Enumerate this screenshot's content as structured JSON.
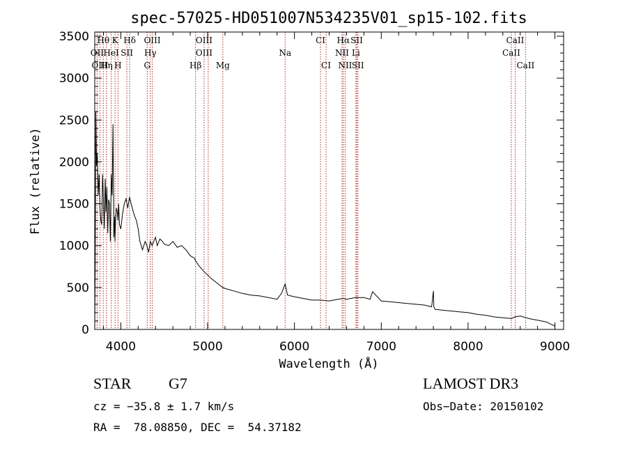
{
  "chart_data": {
    "type": "line",
    "title": "spec-57025-HD051007N534235V01_sp15-102.fits",
    "xlabel": "Wavelength (Å)",
    "ylabel": "Flux (relative)",
    "xlim": [
      3700,
      9100
    ],
    "ylim": [
      0,
      3550
    ],
    "xticks": [
      4000,
      5000,
      6000,
      7000,
      8000,
      9000
    ],
    "xtick_labels": [
      "4000",
      "5000",
      "6000",
      "7000",
      "8000",
      "9000"
    ],
    "yticks": [
      0,
      500,
      1000,
      1500,
      2000,
      2500,
      3000,
      3500
    ],
    "ytick_labels": [
      "0",
      "500",
      "1000",
      "1500",
      "2000",
      "2500",
      "3000",
      "3500"
    ],
    "grid": false,
    "series": [
      {
        "name": "flux",
        "color": "#000000",
        "x": [
          3700,
          3705,
          3712,
          3720,
          3730,
          3740,
          3750,
          3760,
          3770,
          3780,
          3790,
          3800,
          3810,
          3820,
          3830,
          3840,
          3850,
          3860,
          3870,
          3880,
          3890,
          3900,
          3910,
          3920,
          3930,
          3933,
          3940,
          3950,
          3960,
          3968,
          3975,
          3985,
          4000,
          4020,
          4040,
          4060,
          4080,
          4100,
          4120,
          4140,
          4160,
          4180,
          4200,
          4220,
          4250,
          4280,
          4300,
          4320,
          4340,
          4360,
          4380,
          4400,
          4420,
          4450,
          4480,
          4500,
          4550,
          4600,
          4650,
          4700,
          4750,
          4800,
          4850,
          4861,
          4900,
          4950,
          5000,
          5050,
          5100,
          5150,
          5175,
          5200,
          5300,
          5400,
          5500,
          5600,
          5700,
          5800,
          5850,
          5893,
          5920,
          6000,
          6100,
          6200,
          6300,
          6400,
          6500,
          6563,
          6600,
          6700,
          6800,
          6870,
          6900,
          7000,
          7100,
          7200,
          7300,
          7400,
          7500,
          7580,
          7600,
          7605,
          7620,
          7700,
          7800,
          7900,
          8000,
          8100,
          8200,
          8300,
          8400,
          8500,
          8540,
          8600,
          8700,
          8800,
          8900,
          9000
        ],
        "values": [
          0,
          700,
          2600,
          1950,
          2100,
          1600,
          1850,
          1450,
          1300,
          1250,
          1850,
          1550,
          1200,
          1800,
          1400,
          1700,
          1150,
          1550,
          1500,
          1050,
          1850,
          1600,
          2450,
          1100,
          1350,
          1050,
          1300,
          1450,
          1400,
          1300,
          1500,
          1250,
          1200,
          1380,
          1500,
          1560,
          1450,
          1580,
          1500,
          1420,
          1350,
          1300,
          1200,
          1050,
          950,
          1050,
          1000,
          920,
          1050,
          1000,
          1050,
          1100,
          1000,
          1080,
          1050,
          1020,
          1000,
          1050,
          980,
          1000,
          950,
          880,
          850,
          820,
          760,
          700,
          650,
          600,
          560,
          520,
          500,
          490,
          460,
          430,
          410,
          400,
          380,
          360,
          430,
          540,
          410,
          390,
          370,
          350,
          350,
          340,
          360,
          370,
          360,
          380,
          380,
          360,
          450,
          340,
          330,
          320,
          310,
          300,
          290,
          270,
          460,
          270,
          240,
          230,
          220,
          210,
          200,
          180,
          170,
          150,
          140,
          130,
          150,
          160,
          130,
          110,
          90,
          40
        ]
      }
    ],
    "line_labels": [
      {
        "name": "Hθ",
        "x": 3798,
        "row": 0
      },
      {
        "name": "K",
        "x": 3934,
        "row": 0
      },
      {
        "name": "Hδ",
        "x": 4102,
        "row": 0
      },
      {
        "name": "OIII",
        "x": 4363,
        "row": 0
      },
      {
        "name": "OIII",
        "x": 4959,
        "row": 0
      },
      {
        "name": "CI",
        "x": 6300,
        "row": 0
      },
      {
        "name": "Hα",
        "x": 6563,
        "row": 0
      },
      {
        "name": "SII",
        "x": 6717,
        "row": 0
      },
      {
        "name": "CaII",
        "x": 8542,
        "row": 0
      },
      {
        "name": "OII",
        "x": 3727,
        "row": 1
      },
      {
        "name": "HeI",
        "x": 3889,
        "row": 1
      },
      {
        "name": "SII",
        "x": 4070,
        "row": 1
      },
      {
        "name": "Hγ",
        "x": 4340,
        "row": 1
      },
      {
        "name": "OIII",
        "x": 4959,
        "row": 1
      },
      {
        "name": "Na",
        "x": 5893,
        "row": 1
      },
      {
        "name": "NII",
        "x": 6548,
        "row": 1
      },
      {
        "name": "Li",
        "x": 6708,
        "row": 1
      },
      {
        "name": "CaII",
        "x": 8498,
        "row": 1
      },
      {
        "name": "OIII",
        "x": 3760,
        "row": 2
      },
      {
        "name": "Hη",
        "x": 3835,
        "row": 2
      },
      {
        "name": "H",
        "x": 3968,
        "row": 2
      },
      {
        "name": "G",
        "x": 4304,
        "row": 2
      },
      {
        "name": "Hβ",
        "x": 4861,
        "row": 2
      },
      {
        "name": "Mg",
        "x": 5175,
        "row": 2
      },
      {
        "name": "CI",
        "x": 6364,
        "row": 2
      },
      {
        "name": "NII",
        "x": 6584,
        "row": 2
      },
      {
        "name": "SII",
        "x": 6731,
        "row": 2
      },
      {
        "name": "CaII",
        "x": 8662,
        "row": 2
      }
    ],
    "line_markers": [
      3727,
      3760,
      3798,
      3835,
      3889,
      3934,
      3968,
      4070,
      4102,
      4304,
      4340,
      4363,
      4861,
      4959,
      5007,
      5175,
      5893,
      6300,
      6364,
      6548,
      6563,
      6584,
      6708,
      6717,
      6731,
      8498,
      8542,
      8662
    ],
    "marker_color": "#b22222"
  },
  "info": {
    "object_class": "STAR",
    "subclass": "G7",
    "survey": "LAMOST DR3",
    "cz": "cz = −35.8 ± 1.7 km/s",
    "obs_date": "Obs−Date: 20150102",
    "coords": "RA =  78.08850, DEC =  54.37182"
  }
}
